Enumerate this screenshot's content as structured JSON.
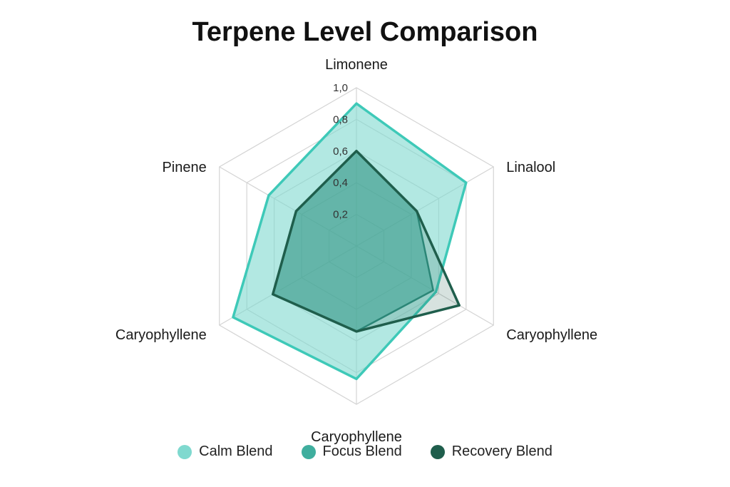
{
  "chart_data": {
    "type": "radar",
    "title": "Terpene Level Comparison",
    "axes": [
      "Limonene",
      "Linalool",
      "Caryophyllene",
      "Caryophyllene",
      "Caryophyllene",
      "Pinene"
    ],
    "ticks": [
      "0,2",
      "0,4",
      "0,6",
      "0,8",
      "1,0"
    ],
    "range": [
      0,
      1.0
    ],
    "grid": true,
    "legend_position": "bottom",
    "series": [
      {
        "name": "Calm Blend",
        "values": [
          0.9,
          0.8,
          0.58,
          0.84,
          0.9,
          0.64
        ],
        "color": "#7fd9cf"
      },
      {
        "name": "Focus Blend",
        "values": [
          0.6,
          0.44,
          0.56,
          0.54,
          0.61,
          0.44
        ],
        "color": "#3fae9e"
      },
      {
        "name": "Recovery Blend",
        "values": [
          0.6,
          0.44,
          0.75,
          0.54,
          0.61,
          0.44
        ],
        "color": "#1f5e4c"
      }
    ]
  }
}
